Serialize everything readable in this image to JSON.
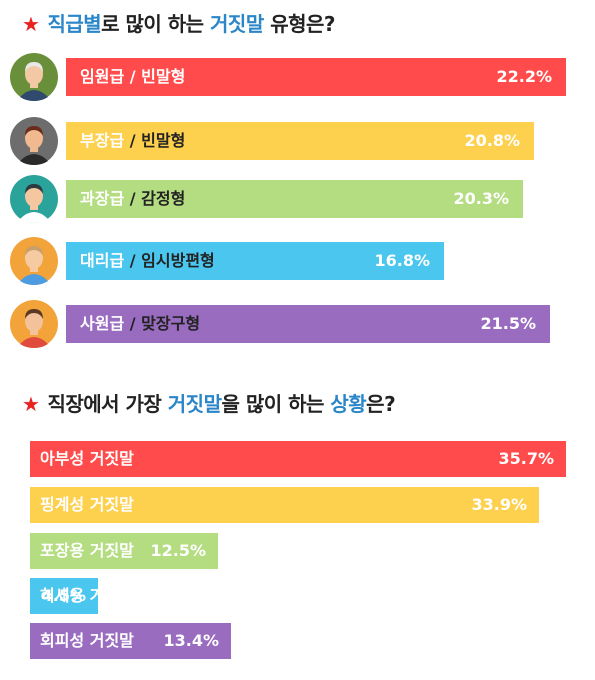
{
  "title1": {
    "p1": "직급별",
    "p2": "로 많이 하는 ",
    "p3": "거짓말",
    "p4": " 유형은?"
  },
  "title2": {
    "p1": "직장에서 가장 ",
    "p2": "거짓말",
    "p3": "을 많이 하는 ",
    "p4": "상황",
    "p5": "은?"
  },
  "chart_data": [
    {
      "type": "bar",
      "categories": [
        "임원급 / 빈말형",
        "부장급 / 빈말형",
        "과장급 / 감정형",
        "대리급 / 임시방편형",
        "사원급 / 맞장구형"
      ],
      "values": [
        22.2,
        20.8,
        20.3,
        16.8,
        21.5
      ],
      "value_labels": [
        "22.2%",
        "20.8%",
        "20.3%",
        "16.8%",
        "21.5%"
      ],
      "colors": [
        "#ff4b4b",
        "#fdd04d",
        "#b4dd82",
        "#4bc6ef",
        "#9a6cc0"
      ],
      "rank_labels": [
        "임원급",
        "부장급",
        "과장급",
        "대리급",
        "사원급"
      ],
      "type_labels": [
        "빈말형",
        "빈말형",
        "감정형",
        "임시방편형",
        "맞장구형"
      ],
      "avatars": [
        "avatar-executive-icon",
        "avatar-manager-icon",
        "avatar-section-chief-icon",
        "avatar-assistant-manager-icon",
        "avatar-staff-icon"
      ]
    },
    {
      "type": "bar",
      "categories": [
        "아부성 거짓말",
        "핑계성 거짓말",
        "포장용 거짓말",
        "허세용 거짓말",
        "회피성 거짓말"
      ],
      "values": [
        35.7,
        33.9,
        12.5,
        4.5,
        13.4
      ],
      "value_labels": [
        "35.7%",
        "33.9%",
        "12.5%",
        "4.5%",
        "13.4%"
      ],
      "colors": [
        "#ff4b4b",
        "#fdd04d",
        "#b4dd82",
        "#4bc6ef",
        "#9a6cc0"
      ]
    }
  ]
}
